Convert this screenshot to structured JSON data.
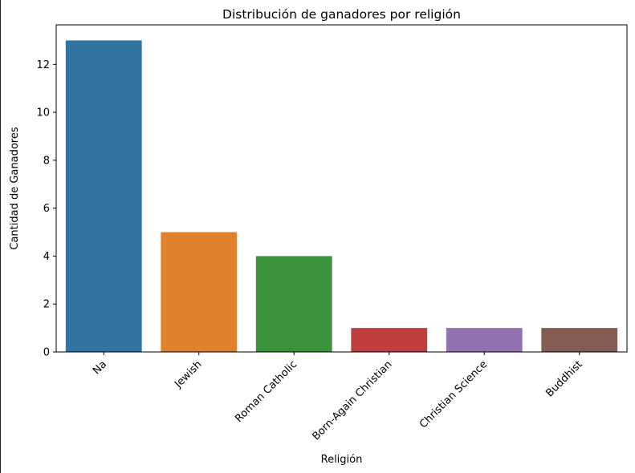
{
  "chart_data": {
    "type": "bar",
    "title": "Distribución de ganadores por religión",
    "xlabel": "Religión",
    "ylabel": "Cantidad de Ganadores",
    "categories": [
      "Na",
      "Jewish",
      "Roman Catholic",
      "Born-Again Christian",
      "Christian Science",
      "Buddhist"
    ],
    "values": [
      13,
      5,
      4,
      1,
      1,
      1
    ],
    "colors": [
      "#3274a1",
      "#e1812c",
      "#3a923a",
      "#c03d3e",
      "#9372b2",
      "#845b53"
    ],
    "ylim": [
      0,
      13.65
    ],
    "yticks": [
      0,
      2,
      4,
      6,
      8,
      10,
      12
    ],
    "grid": false
  }
}
